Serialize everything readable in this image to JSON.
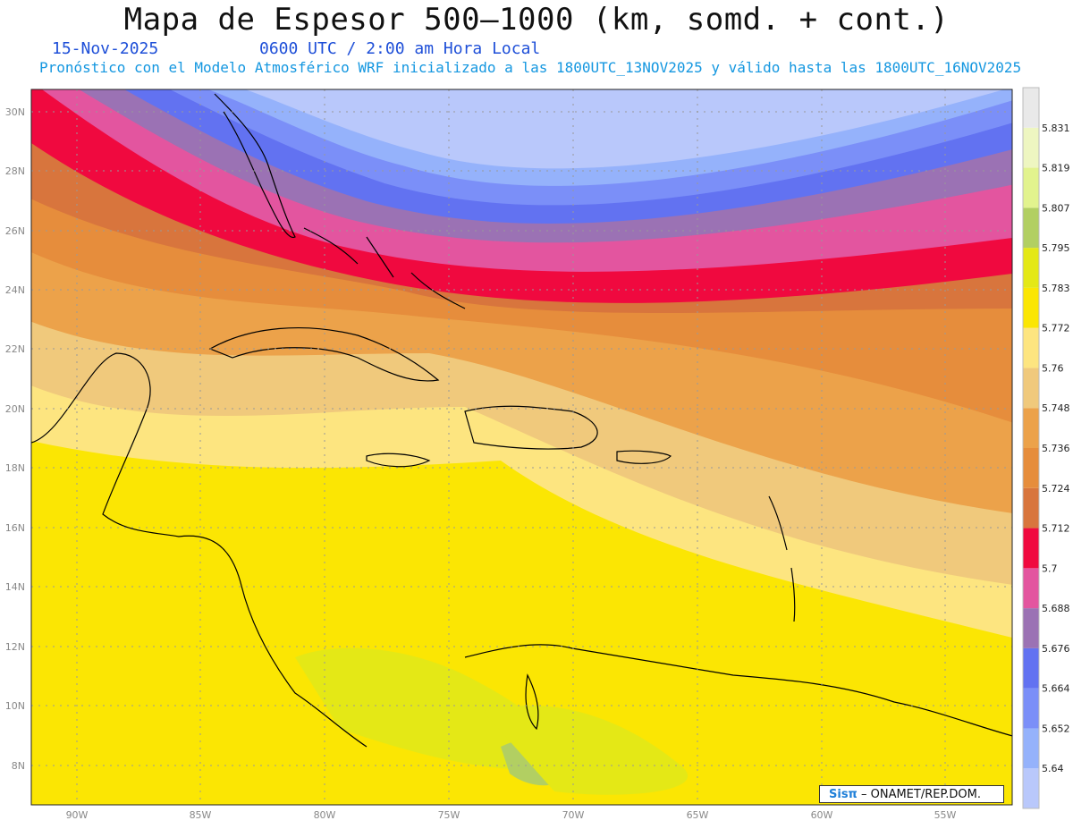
{
  "title": "Mapa de Espesor 500–1000 (km, somd. + cont.)",
  "date_label": "15-Nov-2025",
  "time_label": "0600 UTC / 2:00 am Hora Local",
  "description": "Pronóstico con el Modelo Atmosférico WRF inicializado a las 1800UTC_13NOV2025 y válido hasta las  1800UTC_16NOV2025",
  "badge": {
    "logo": "Sisπ",
    "text": "– ONAMET/REP.DOM."
  },
  "map": {
    "lon_range": [
      -92,
      -53
    ],
    "lat_range": [
      7,
      30.5
    ],
    "lon_ticks": [
      "90W",
      "85W",
      "80W",
      "75W",
      "70W",
      "65W",
      "60W",
      "55W"
    ],
    "lat_ticks": [
      "30N",
      "28N",
      "26N",
      "24N",
      "22N",
      "20N",
      "18N",
      "16N",
      "14N",
      "12N",
      "10N",
      "8N"
    ]
  },
  "legend": {
    "levels": [
      "5.64",
      "5.652",
      "5.664",
      "5.676",
      "5.688",
      "5.7",
      "5.712",
      "5.724",
      "5.736",
      "5.748",
      "5.76",
      "5.772",
      "5.783",
      "5.795",
      "5.807",
      "5.819",
      "5.831"
    ],
    "colors": [
      "#b9c8fb",
      "#95b2fb",
      "#7b8ff8",
      "#6272f1",
      "#9b72b4",
      "#e3559f",
      "#f0093f",
      "#d8753d",
      "#e68d3c",
      "#eca24a",
      "#f0c97c",
      "#fde580",
      "#fbe603",
      "#e4e816",
      "#b2cf62",
      "#e2f38e",
      "#eef6c1",
      "#e9e9e9"
    ]
  }
}
